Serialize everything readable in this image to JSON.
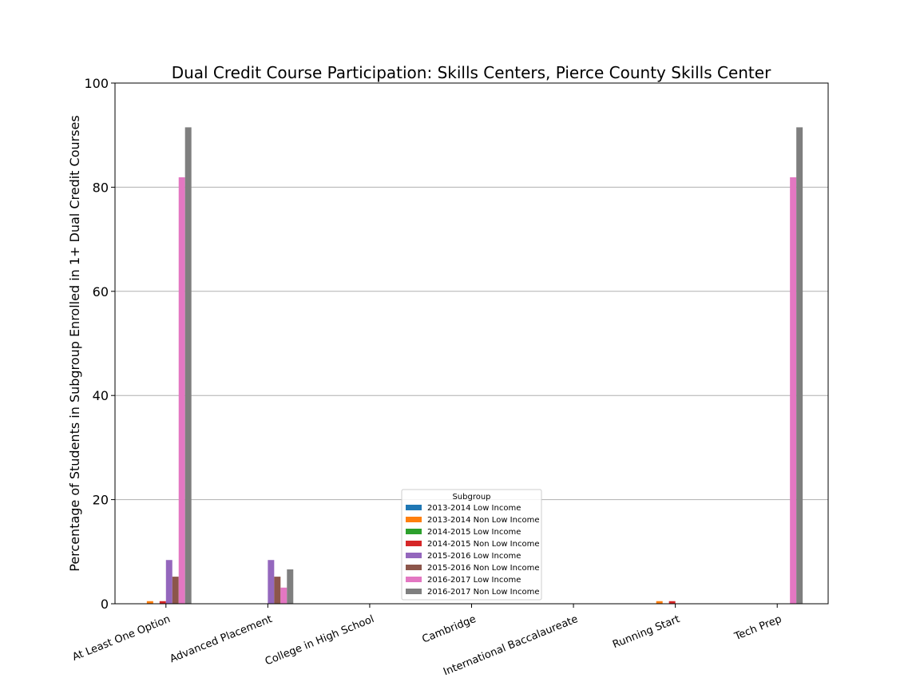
{
  "chart_data": {
    "type": "bar",
    "title": "Dual Credit Course Participation: Skills Centers, Pierce County Skills Center",
    "xlabel": "",
    "ylabel": "Percentage of Students in Subgroup Enrolled in 1+ Dual Credit Courses",
    "ylim": [
      0,
      100
    ],
    "yticks": [
      0,
      20,
      40,
      60,
      80,
      100
    ],
    "grid": "horizontal",
    "legend_title": "Subgroup",
    "legend_position": "bottom-center",
    "categories": [
      "At Least One Option",
      "Advanced Placement",
      "College in High School",
      "Cambridge",
      "International Baccalaureate",
      "Running Start",
      "Tech Prep"
    ],
    "series": [
      {
        "name": "2013-2014 Low Income",
        "color": "#1f77b4",
        "values": [
          0,
          0,
          0,
          0,
          0,
          0,
          0
        ]
      },
      {
        "name": "2013-2014 Non Low Income",
        "color": "#ff7f0e",
        "values": [
          0.5,
          0,
          0,
          0,
          0,
          0.5,
          0
        ]
      },
      {
        "name": "2014-2015 Low Income",
        "color": "#2ca02c",
        "values": [
          0,
          0,
          0,
          0,
          0,
          0,
          0
        ]
      },
      {
        "name": "2014-2015 Non Low Income",
        "color": "#d62728",
        "values": [
          0.5,
          0,
          0,
          0,
          0,
          0.5,
          0
        ]
      },
      {
        "name": "2015-2016 Low Income",
        "color": "#9467bd",
        "values": [
          8.4,
          8.4,
          0,
          0,
          0,
          0,
          0
        ]
      },
      {
        "name": "2015-2016 Non Low Income",
        "color": "#8c564b",
        "values": [
          5.2,
          5.2,
          0,
          0,
          0,
          0,
          0
        ]
      },
      {
        "name": "2016-2017 Low Income",
        "color": "#e377c2",
        "values": [
          81.9,
          3.1,
          0,
          0,
          0,
          0,
          81.9
        ]
      },
      {
        "name": "2016-2017 Non Low Income",
        "color": "#7f7f7f",
        "values": [
          91.5,
          6.6,
          0,
          0,
          0,
          0,
          91.5
        ]
      }
    ]
  }
}
